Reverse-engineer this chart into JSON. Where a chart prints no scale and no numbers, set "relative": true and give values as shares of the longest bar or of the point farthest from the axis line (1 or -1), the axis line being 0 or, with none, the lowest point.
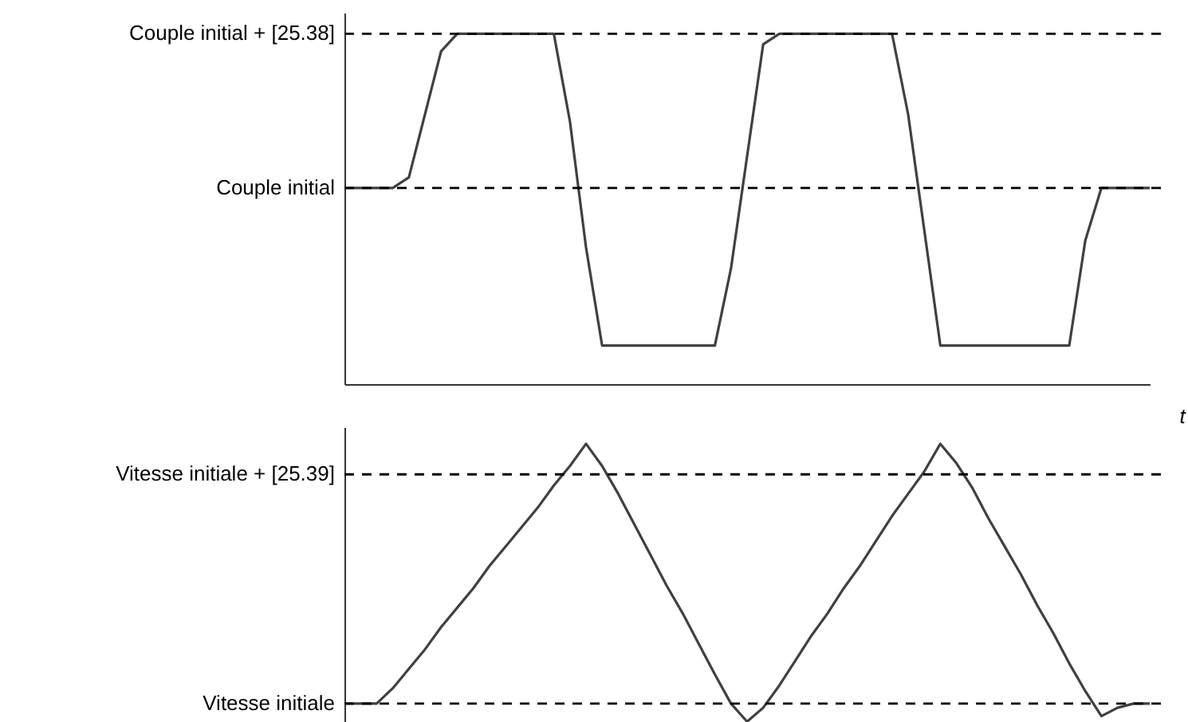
{
  "chart_data": [
    {
      "type": "line",
      "xlabel": "t",
      "relative": true,
      "color": "#404040",
      "categories": [
        null,
        null,
        null,
        null,
        null,
        null,
        null,
        null,
        null,
        null,
        null,
        null,
        null,
        null,
        null,
        null,
        null,
        null,
        null,
        null,
        null,
        null,
        null,
        null,
        null,
        null,
        null,
        null,
        null,
        null,
        null,
        null,
        null,
        null,
        null,
        null,
        null,
        null,
        null,
        null,
        null,
        null,
        null,
        null,
        null,
        null,
        null,
        null,
        null,
        null,
        null
      ],
      "values": [
        0.56,
        0.56,
        0.56,
        0.56,
        0.59,
        0.77,
        0.95,
        1,
        1,
        1,
        1,
        1,
        1,
        1,
        0.75,
        0.39,
        0.11,
        0.11,
        0.11,
        0.11,
        0.11,
        0.11,
        0.11,
        0.11,
        0.33,
        0.65,
        0.97,
        1,
        1,
        1,
        1,
        1,
        1,
        1,
        1,
        0.77,
        0.44,
        0.11,
        0.11,
        0.11,
        0.11,
        0.11,
        0.11,
        0.11,
        0.11,
        0.11,
        0.41,
        0.56,
        0.56,
        0.56,
        0.56
      ],
      "ref_lines": [
        {
          "axis": "y",
          "value": 1,
          "label": "Couple initial + [25.38]",
          "line_style": "dashed"
        },
        {
          "axis": "y",
          "value": 0.56,
          "label": "Couple initial",
          "line_style": "dashed"
        }
      ]
    },
    {
      "type": "line",
      "relative": true,
      "color": "#404040",
      "categories": [
        null,
        null,
        null,
        null,
        null,
        null,
        null,
        null,
        null,
        null,
        null,
        null,
        null,
        null,
        null,
        null,
        null,
        null,
        null,
        null,
        null,
        null,
        null,
        null,
        null,
        null,
        null,
        null,
        null,
        null,
        null,
        null,
        null,
        null,
        null,
        null,
        null,
        null,
        null,
        null,
        null,
        null,
        null,
        null,
        null,
        null,
        null,
        null,
        null,
        null,
        null
      ],
      "values": [
        0.065,
        0.065,
        0.065,
        0.12,
        0.19,
        0.26,
        0.34,
        0.41,
        0.48,
        0.56,
        0.63,
        0.7,
        0.77,
        0.85,
        0.92,
        1,
        0.92,
        0.82,
        0.71,
        0.6,
        0.49,
        0.39,
        0.28,
        0.17,
        0.065,
        0,
        0.05,
        0.13,
        0.22,
        0.31,
        0.39,
        0.48,
        0.56,
        0.65,
        0.74,
        0.82,
        0.9,
        1,
        0.93,
        0.84,
        0.73,
        0.63,
        0.53,
        0.42,
        0.32,
        0.21,
        0.11,
        0.02,
        0.05,
        0.065,
        0.065
      ],
      "ref_lines": [
        {
          "axis": "y",
          "value": 0.89,
          "label": "Vitesse initiale + [25.39]",
          "line_style": "dashed"
        },
        {
          "axis": "y",
          "value": 0.065,
          "label": "Vitesse initiale",
          "line_style": "dashed"
        }
      ]
    }
  ]
}
